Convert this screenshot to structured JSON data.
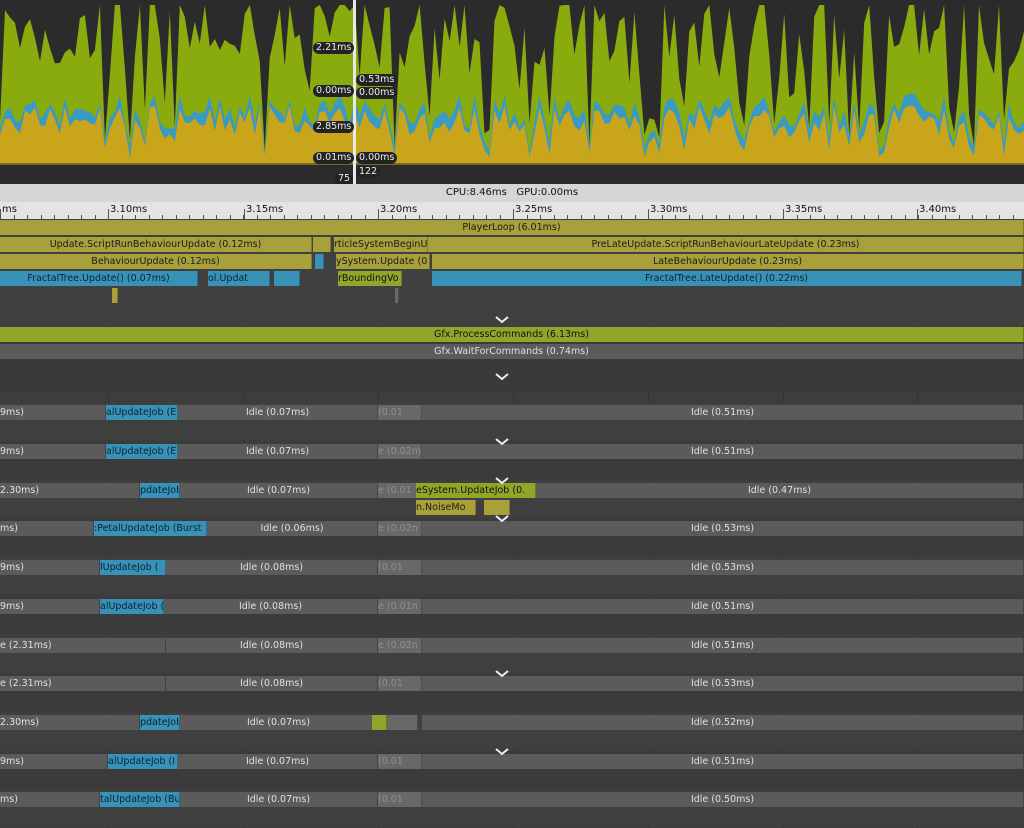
{
  "chart_data": {
    "type": "area",
    "title": "",
    "series": [
      {
        "color": "#c8a51a"
      },
      {
        "color": "#3a9ac2"
      },
      {
        "color": "#8aab0d"
      }
    ],
    "grid": false
  },
  "overlay_labels": {
    "l1": "2.21ms",
    "l2": "0.00ms",
    "l3": "2.85ms",
    "l4": "0.01ms",
    "r1": "0.53ms",
    "r2": "0.00ms",
    "r3": "0.00ms",
    "r4": "122",
    "frame": "75"
  },
  "status": {
    "cpu": "CPU:8.46ms",
    "gpu": "GPU:0.00ms"
  },
  "ruler": {
    "labels": [
      "ms",
      "3.10ms",
      "3.15ms",
      "3.20ms",
      "3.25ms",
      "3.30ms",
      "3.35ms",
      "3.40ms"
    ]
  },
  "main_thread": {
    "playerloop": "PlayerLoop (6.01ms)",
    "update_script": "Update.ScriptRunBehaviourUpdate (0.12ms)",
    "particle_begin": "rticleSystemBeginU",
    "prelate": "PreLateUpdate.ScriptRunBehaviourLateUpdate (0.23ms)",
    "behaviour_update": "BehaviourUpdate (0.12ms)",
    "psys_update": "ySystem.Update (0",
    "late_behaviour": "LateBehaviourUpdate (0.23ms)",
    "fractal_update": "FractalTree.Update() (0.07ms)",
    "ol_updat": "ol.Updat",
    "bounding": "rBoundingVo",
    "fractal_late": "FractalTree.LateUpdate() (0.22ms)"
  },
  "render_thread": {
    "gfx_process": "Gfx.ProcessCommands (6.13ms)",
    "gfx_wait": "Gfx.WaitForCommands (0.74ms)"
  },
  "workers": [
    {
      "a": "9ms)",
      "job": "alUpdateJob (E",
      "idle1": "Idle (0.07ms)",
      "mid": "(0.01",
      "idle2": "Idle (0.51ms)"
    },
    {
      "a": "9ms)",
      "job": "alUpdateJob (E",
      "idle1": "Idle (0.07ms)",
      "mid": "e (0.02m",
      "idle2": "Idle (0.51ms)"
    },
    {
      "a": "2.30ms)",
      "job": "pdateJob",
      "idle1": "Idle (0.07ms)",
      "mid": "e (0.01",
      "extra": "eSystem.UpdateJob (0.",
      "extra2": "n.NoiseMo",
      "idle2": "Idle (0.47ms)"
    },
    {
      "a": "ms)",
      "job": ":PetalUpdateJob (Burst",
      "idle1": "Idle (0.06ms)",
      "mid": "e (0.02n",
      "idle2": "Idle (0.53ms)"
    },
    {
      "a": "9ms)",
      "job": "lUpdateJob (",
      "idle1": "Idle (0.08ms)",
      "mid": "(0.01",
      "idle2": "Idle (0.53ms)"
    },
    {
      "a": "9ms)",
      "job": "alUpdateJob (",
      "idle1": "Idle (0.08ms)",
      "mid": "e (0.01n",
      "idle2": "Idle (0.51ms)"
    },
    {
      "a": "e (2.31ms)",
      "job": "",
      "idle1": "Idle (0.08ms)",
      "mid": "e (0.02n",
      "idle2": "Idle (0.51ms)"
    },
    {
      "a": "e (2.31ms)",
      "job": "",
      "idle1": "Idle (0.08ms)",
      "mid": "(0.01",
      "idle2": "Idle (0.53ms)"
    },
    {
      "a": "2.30ms)",
      "job": "pdateJob",
      "idle1": "Idle (0.07ms)",
      "mid": "",
      "idle2": "Idle (0.52ms)"
    },
    {
      "a": "9ms)",
      "job": "alUpdateJob (I",
      "idle1": "Idle (0.07ms)",
      "mid": "(0.01",
      "idle2": "Idle (0.51ms)"
    },
    {
      "a": "ms)",
      "job": "talUpdateJob (Bu",
      "idle1": "Idle (0.07ms)",
      "mid": "(0.01",
      "idle2": "Idle (0.50ms)"
    }
  ]
}
